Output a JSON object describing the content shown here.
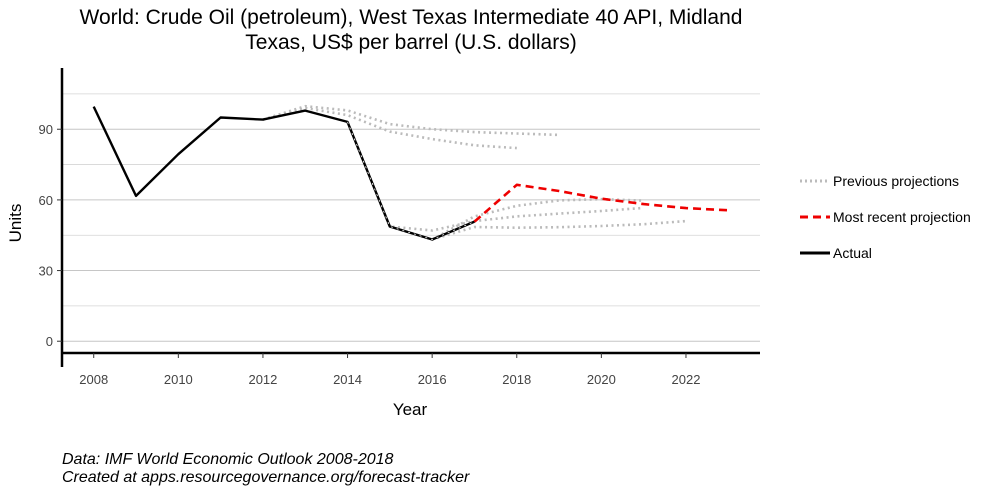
{
  "chart_data": {
    "type": "line",
    "title": "World: Crude Oil (petroleum), West Texas Intermediate 40 API, Midland Texas, US$ per barrel (U.S. dollars)",
    "title_lines": [
      "World: Crude Oil (petroleum), West Texas Intermediate 40 API, Midland",
      "Texas, US$ per barrel (U.S. dollars)"
    ],
    "xlabel": "Year",
    "ylabel": "Units",
    "xlim": [
      2007.25,
      2023.75
    ],
    "ylim": [
      -5,
      116
    ],
    "x_ticks": [
      2008,
      2010,
      2012,
      2014,
      2016,
      2018,
      2020,
      2022
    ],
    "y_ticks": [
      0,
      30,
      60,
      90
    ],
    "y_minor_grid": [
      15,
      45,
      75,
      105
    ],
    "grid": "horizontal",
    "legend_position": "right",
    "colors": {
      "actual": "#000000",
      "recent": "#ee0000",
      "previous": "#bbbbbb"
    },
    "series": [
      {
        "name": "Actual",
        "role": "actual",
        "x": [
          2008,
          2009,
          2010,
          2011,
          2012,
          2013,
          2014,
          2015,
          2016,
          2017
        ],
        "y": [
          99.6,
          61.7,
          79.4,
          95.0,
          94.1,
          97.9,
          93.1,
          48.7,
          43.2,
          50.8
        ]
      },
      {
        "name": "Most recent projection",
        "role": "recent",
        "x": [
          2017,
          2018,
          2019,
          2020,
          2021,
          2022,
          2023
        ],
        "y": [
          50.8,
          66.4,
          63.8,
          60.5,
          58.2,
          56.5,
          55.6
        ]
      },
      {
        "name": "Previous projections",
        "role": "previous",
        "x": [
          2012,
          2013,
          2014,
          2015,
          2016,
          2017,
          2018,
          2019
        ],
        "y": [
          94.1,
          99.8,
          98.0,
          92.2,
          90.0,
          88.8,
          88.2,
          87.6
        ]
      },
      {
        "role": "previous",
        "x": [
          2012,
          2013,
          2014,
          2015,
          2016,
          2017,
          2018
        ],
        "y": [
          94.1,
          99.0,
          96.0,
          89.0,
          85.8,
          83.2,
          82.0
        ]
      },
      {
        "role": "previous",
        "x": [
          2014,
          2015,
          2016,
          2017,
          2018,
          2019,
          2020,
          2021
        ],
        "y": [
          93.1,
          48.7,
          47.0,
          51.0,
          53.0,
          54.2,
          55.3,
          56.6
        ]
      },
      {
        "role": "previous",
        "x": [
          2015,
          2016,
          2017,
          2018,
          2019,
          2020,
          2021,
          2022
        ],
        "y": [
          48.7,
          43.2,
          48.5,
          48.2,
          48.4,
          48.9,
          49.7,
          51.0
        ]
      },
      {
        "role": "previous",
        "x": [
          2016,
          2017,
          2018,
          2019,
          2020,
          2021
        ],
        "y": [
          43.2,
          53.0,
          57.5,
          59.8,
          60.3,
          59.7
        ]
      }
    ]
  },
  "legend": {
    "previous": "Previous projections",
    "recent": "Most recent projection",
    "actual": "Actual"
  },
  "caption": {
    "line1": "Data: IMF World Economic Outlook 2008-2018",
    "line2": "Created at apps.resourcegovernance.org/forecast-tracker"
  }
}
